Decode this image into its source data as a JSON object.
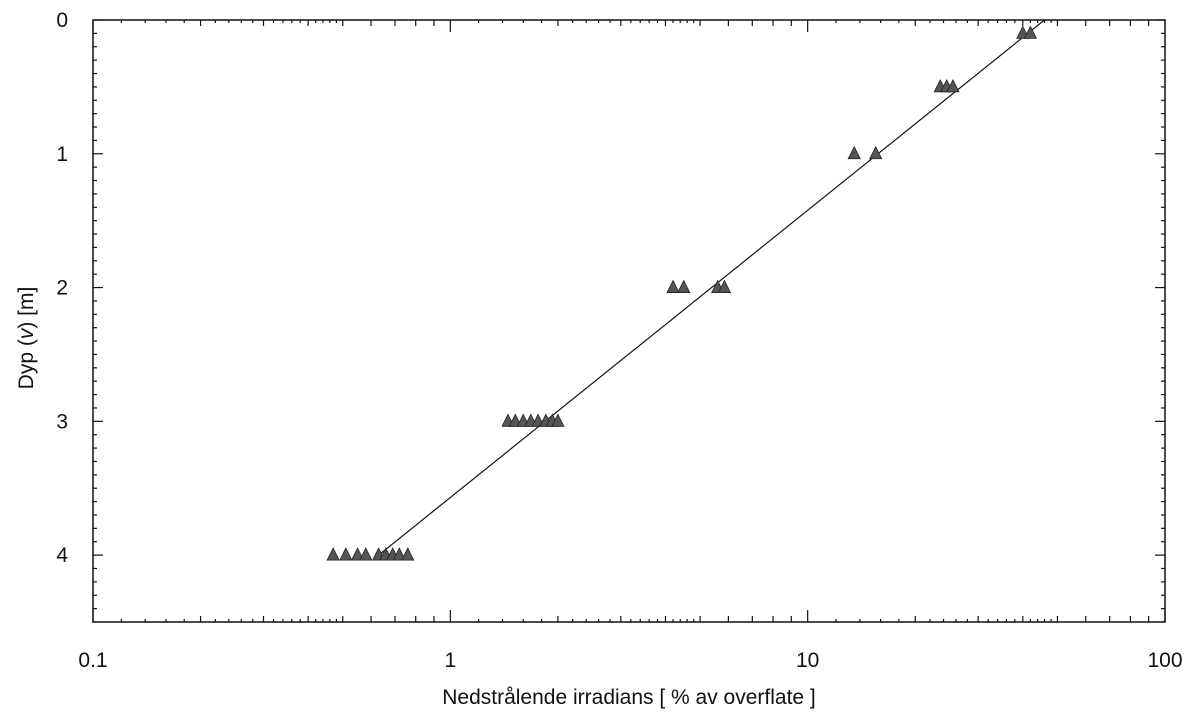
{
  "chart_data": {
    "type": "scatter",
    "xlabel": "Nedstrålende irradians [ % av overflate ]",
    "ylabel": "Dyp (v) [m]",
    "ylabel_parts": {
      "pre": "Dyp (",
      "var": "v",
      "post": ") [m]"
    },
    "x_scale": "log",
    "xlim": [
      0.1,
      100
    ],
    "ylim": [
      0,
      4.5
    ],
    "y_inverted": true,
    "x_ticks": [
      "0.1",
      "1",
      "10",
      "100"
    ],
    "y_ticks": [
      "0",
      "1",
      "2",
      "3",
      "4"
    ],
    "grid": false,
    "series": [
      {
        "marker": "triangle",
        "points": [
          {
            "x": 40,
            "y": 0.1
          },
          {
            "x": 42,
            "y": 0.1
          },
          {
            "x": 23.5,
            "y": 0.5
          },
          {
            "x": 24.5,
            "y": 0.5
          },
          {
            "x": 25.5,
            "y": 0.5
          },
          {
            "x": 13.5,
            "y": 1.0
          },
          {
            "x": 15.5,
            "y": 1.0
          },
          {
            "x": 4.2,
            "y": 2.0
          },
          {
            "x": 4.5,
            "y": 2.0
          },
          {
            "x": 5.6,
            "y": 2.0
          },
          {
            "x": 5.85,
            "y": 2.0
          },
          {
            "x": 1.45,
            "y": 3.0
          },
          {
            "x": 1.52,
            "y": 3.0
          },
          {
            "x": 1.6,
            "y": 3.0
          },
          {
            "x": 1.68,
            "y": 3.0
          },
          {
            "x": 1.76,
            "y": 3.0
          },
          {
            "x": 1.85,
            "y": 3.0
          },
          {
            "x": 1.93,
            "y": 3.0
          },
          {
            "x": 2.0,
            "y": 3.0
          },
          {
            "x": 0.47,
            "y": 4.0
          },
          {
            "x": 0.51,
            "y": 4.0
          },
          {
            "x": 0.55,
            "y": 4.0
          },
          {
            "x": 0.58,
            "y": 4.0
          },
          {
            "x": 0.63,
            "y": 4.0
          },
          {
            "x": 0.66,
            "y": 4.0
          },
          {
            "x": 0.69,
            "y": 4.0
          },
          {
            "x": 0.72,
            "y": 4.0
          },
          {
            "x": 0.76,
            "y": 4.0
          }
        ]
      }
    ],
    "fit_line": [
      {
        "x": 46,
        "y": 0
      },
      {
        "x": 0.63,
        "y": 4.0
      }
    ]
  }
}
